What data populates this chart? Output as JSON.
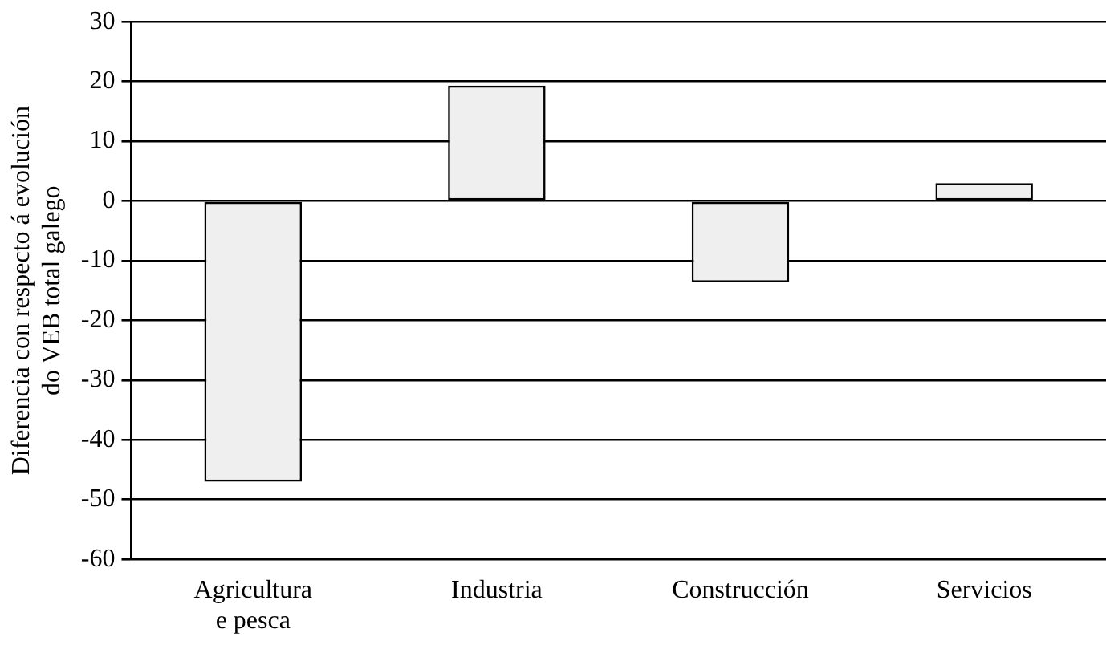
{
  "chart_data": {
    "type": "bar",
    "ylabel": "Diferencia con respecto á evolución\ndo VEB total galego",
    "categories": [
      "Agricultura\ne pesca",
      "Industria",
      "Construcción",
      "Servicios"
    ],
    "values": [
      -47,
      19.3,
      -13.6,
      3
    ],
    "color": "#efefef",
    "ylim": [
      -60,
      30
    ],
    "yticks": [
      -60,
      -50,
      -40,
      -30,
      -20,
      -10,
      0,
      10,
      20,
      30
    ],
    "grid": "y"
  }
}
